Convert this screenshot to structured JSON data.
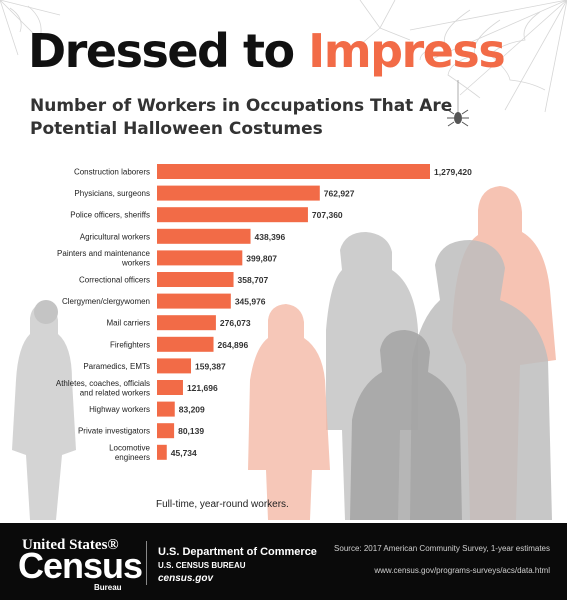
{
  "title_part1": "Dressed to ",
  "title_part2": "Impress",
  "subtitle": "Number of Workers in Occupations That Are Potential Halloween Costumes",
  "colors": {
    "bar": "#f26b47",
    "accent": "#f26b47",
    "text": "#111111",
    "footer_bg": "#0a0a0a",
    "silhouette_gray": "#cccccc",
    "silhouette_peach": "#f4b9a6"
  },
  "chart_data": {
    "type": "bar",
    "orientation": "horizontal",
    "categories": [
      "Construction laborers",
      "Physicians, surgeons",
      "Police officers, sheriffs",
      "Agricultural workers",
      "Painters and maintenance workers",
      "Correctional officers",
      "Clergymen/clergywomen",
      "Mail carriers",
      "Firefighters",
      "Paramedics, EMTs",
      "Athletes, coaches, officials and related workers",
      "Highway workers",
      "Private  investigators",
      "Locomotive engineers"
    ],
    "category_lines": [
      [
        "Construction laborers"
      ],
      [
        "Physicians, surgeons"
      ],
      [
        "Police officers, sheriffs"
      ],
      [
        "Agricultural workers"
      ],
      [
        "Painters and maintenance",
        "workers"
      ],
      [
        "Correctional officers"
      ],
      [
        "Clergymen/clergywomen"
      ],
      [
        "Mail carriers"
      ],
      [
        "Firefighters"
      ],
      [
        "Paramedics, EMTs"
      ],
      [
        "Athletes, coaches, officials",
        "and related workers"
      ],
      [
        "Highway workers"
      ],
      [
        "Private  investigators"
      ],
      [
        "Locomotive",
        "engineers"
      ]
    ],
    "values": [
      1279420,
      762927,
      707360,
      438396,
      399807,
      358707,
      345976,
      276073,
      264896,
      159387,
      121696,
      83209,
      80139,
      45734
    ],
    "value_labels": [
      "1,279,420",
      "762,927",
      "707,360",
      "438,396",
      "399,807",
      "358,707",
      "345,976",
      "276,073",
      "264,896",
      "159,387",
      "121,696",
      "83,209",
      "80,139",
      "45,734"
    ],
    "xlim": [
      0,
      1279420
    ],
    "grid": false,
    "legend": "none"
  },
  "note": "Full-time, year-round workers.",
  "footer": {
    "logo_top": "United States®",
    "logo_main": "Census",
    "logo_bureau": "Bureau",
    "department": "U.S. Department of Commerce",
    "bureau": "U.S. CENSUS BUREAU",
    "website": "census.gov",
    "source": "Source: 2017 American Community Survey, 1-year estimates",
    "url": "www.census.gov/programs-surveys/acs/data.html"
  },
  "decor_icons": [
    "spiderweb-icon",
    "spider-icon",
    "worker-silhouettes"
  ]
}
